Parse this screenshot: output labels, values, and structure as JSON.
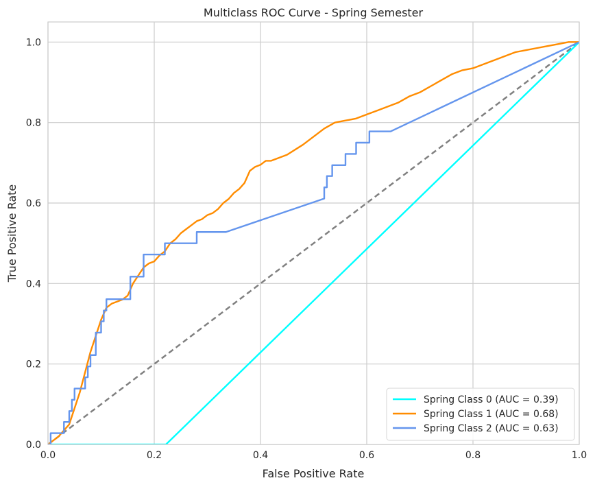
{
  "chart_data": {
    "type": "line",
    "title": "Multiclass ROC Curve - Spring Semester",
    "xlabel": "False Positive Rate",
    "ylabel": "True Positive Rate",
    "xlim": [
      0.0,
      1.0
    ],
    "ylim": [
      0.0,
      1.05
    ],
    "xticks": [
      "0.0",
      "0.2",
      "0.4",
      "0.6",
      "0.8",
      "1.0"
    ],
    "yticks": [
      "0.0",
      "0.2",
      "0.4",
      "0.6",
      "0.8",
      "1.0"
    ],
    "xtick_values": [
      0.0,
      0.2,
      0.4,
      0.6,
      0.8,
      1.0
    ],
    "ytick_values": [
      0.0,
      0.2,
      0.4,
      0.6,
      0.8,
      1.0
    ],
    "grid": true,
    "legend_position": "bottom-right",
    "chance_line": {
      "x": [
        0.0,
        1.0
      ],
      "y": [
        0.0,
        1.0
      ],
      "color": "#808080",
      "style": "dashed"
    },
    "series": [
      {
        "name": "Spring Class 0 (AUC = 0.39)",
        "color": "#00ffff",
        "x": [
          0.0,
          0.222,
          1.0
        ],
        "y": [
          0.0,
          0.0,
          1.0
        ]
      },
      {
        "name": "Spring Class 1 (AUC = 0.68)",
        "color": "#ff8c00",
        "x": [
          0.0,
          0.02,
          0.04,
          0.06,
          0.08,
          0.1,
          0.11,
          0.12,
          0.13,
          0.14,
          0.15,
          0.16,
          0.17,
          0.18,
          0.19,
          0.2,
          0.21,
          0.22,
          0.23,
          0.24,
          0.25,
          0.26,
          0.27,
          0.28,
          0.29,
          0.3,
          0.31,
          0.32,
          0.33,
          0.34,
          0.35,
          0.36,
          0.37,
          0.375,
          0.38,
          0.39,
          0.4,
          0.41,
          0.42,
          0.45,
          0.48,
          0.5,
          0.52,
          0.54,
          0.56,
          0.58,
          0.6,
          0.62,
          0.64,
          0.66,
          0.68,
          0.7,
          0.72,
          0.74,
          0.76,
          0.78,
          0.8,
          0.82,
          0.84,
          0.86,
          0.88,
          0.9,
          0.92,
          0.94,
          0.96,
          0.98,
          1.0
        ],
        "y": [
          0.0,
          0.02,
          0.05,
          0.13,
          0.23,
          0.31,
          0.34,
          0.35,
          0.355,
          0.36,
          0.37,
          0.4,
          0.42,
          0.44,
          0.45,
          0.455,
          0.47,
          0.48,
          0.5,
          0.51,
          0.525,
          0.535,
          0.545,
          0.555,
          0.56,
          0.57,
          0.575,
          0.585,
          0.6,
          0.61,
          0.625,
          0.635,
          0.65,
          0.665,
          0.68,
          0.69,
          0.695,
          0.705,
          0.705,
          0.72,
          0.745,
          0.765,
          0.785,
          0.8,
          0.805,
          0.81,
          0.82,
          0.83,
          0.84,
          0.85,
          0.865,
          0.875,
          0.89,
          0.905,
          0.92,
          0.93,
          0.935,
          0.945,
          0.955,
          0.965,
          0.975,
          0.98,
          0.985,
          0.99,
          0.995,
          1.0,
          1.0
        ]
      },
      {
        "name": "Spring Class 2 (AUC = 0.63)",
        "color": "#6495ed",
        "x": [
          0.0,
          0.005,
          0.005,
          0.03,
          0.03,
          0.04,
          0.04,
          0.045,
          0.045,
          0.05,
          0.05,
          0.07,
          0.07,
          0.075,
          0.075,
          0.08,
          0.08,
          0.09,
          0.09,
          0.1,
          0.1,
          0.105,
          0.105,
          0.11,
          0.11,
          0.155,
          0.155,
          0.18,
          0.18,
          0.22,
          0.22,
          0.28,
          0.28,
          0.335,
          0.52,
          0.52,
          0.525,
          0.525,
          0.535,
          0.535,
          0.56,
          0.56,
          0.58,
          0.58,
          0.605,
          0.605,
          0.645,
          1.0
        ],
        "y": [
          0.0,
          0.0,
          0.028,
          0.028,
          0.056,
          0.056,
          0.083,
          0.083,
          0.111,
          0.111,
          0.139,
          0.139,
          0.167,
          0.167,
          0.194,
          0.194,
          0.222,
          0.222,
          0.278,
          0.278,
          0.306,
          0.306,
          0.333,
          0.333,
          0.361,
          0.361,
          0.417,
          0.417,
          0.472,
          0.472,
          0.5,
          0.5,
          0.528,
          0.528,
          0.611,
          0.639,
          0.639,
          0.667,
          0.667,
          0.694,
          0.694,
          0.722,
          0.722,
          0.75,
          0.75,
          0.778,
          0.778,
          1.0
        ]
      }
    ]
  }
}
